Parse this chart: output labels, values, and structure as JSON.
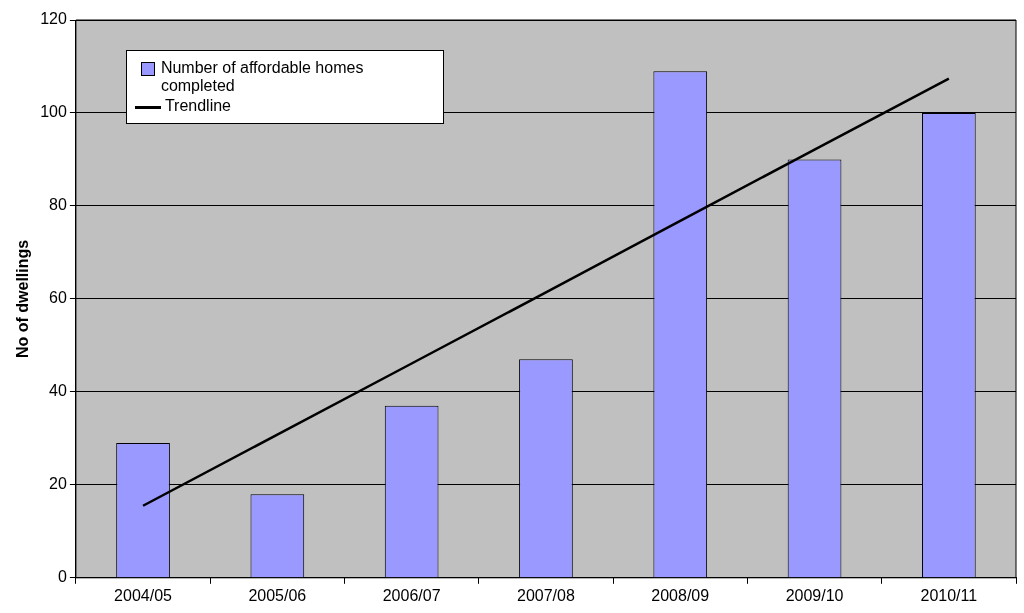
{
  "chart_data": {
    "type": "bar",
    "ylabel": "No of dwellings",
    "categories": [
      "2004/05",
      "2005/06",
      "2006/07",
      "2007/08",
      "2008/09",
      "2009/10",
      "2010/11"
    ],
    "series": [
      {
        "name": "Number of affordable homes completed",
        "color": "#9999ff",
        "values": [
          29,
          18,
          37,
          47,
          109,
          90,
          100
        ]
      },
      {
        "name": "Trendline",
        "type": "line",
        "color": "#000000",
        "values": [
          15.5,
          30.8,
          46.1,
          61.4,
          76.8,
          92.1,
          107.4
        ]
      }
    ],
    "ylim": [
      0,
      120
    ],
    "yticks": [
      0,
      20,
      40,
      60,
      80,
      100,
      120
    ],
    "grid": "y",
    "legend": "top left",
    "marker": "none",
    "line_style": "solid"
  }
}
